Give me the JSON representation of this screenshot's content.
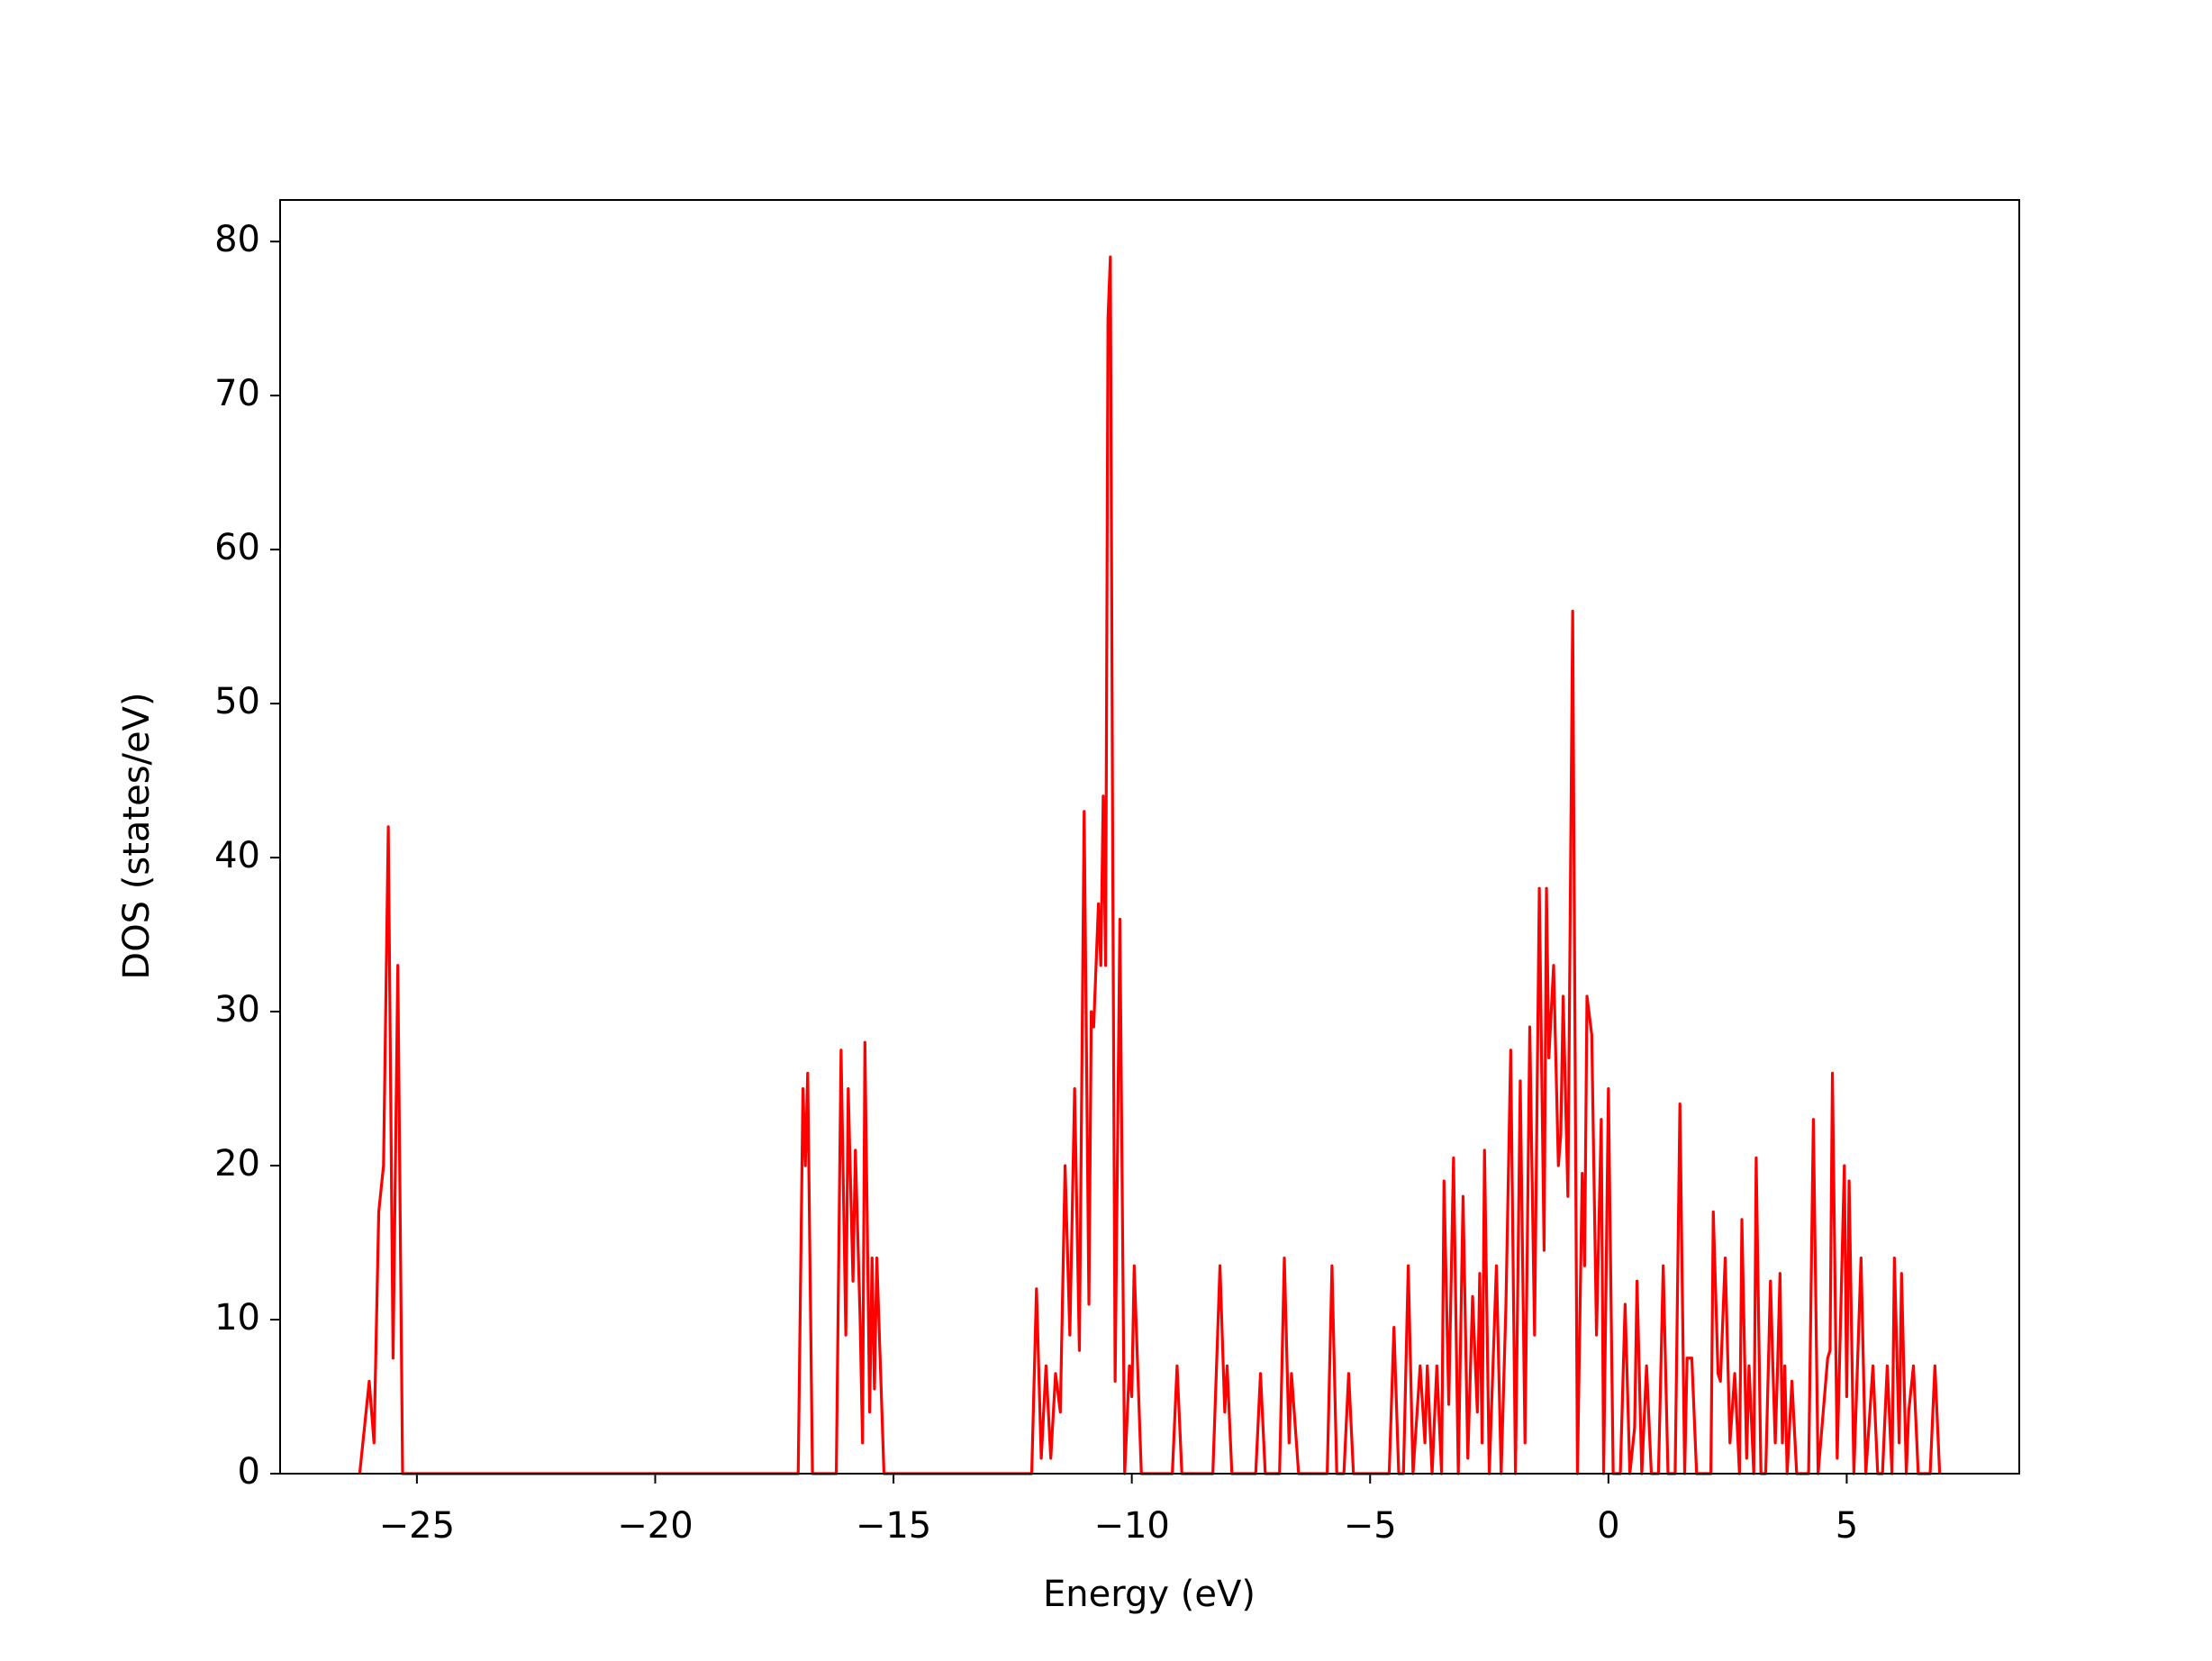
{
  "chart_data": {
    "type": "line",
    "xlabel": "Energy (eV)",
    "ylabel": "DOS (states/eV)",
    "color": "#ff0000",
    "xlim": [
      -27.87,
      8.62
    ],
    "ylim": [
      0,
      82.7
    ],
    "xticks": [
      {
        "value": -25,
        "label": "−25"
      },
      {
        "value": -20,
        "label": "−20"
      },
      {
        "value": -15,
        "label": "−15"
      },
      {
        "value": -10,
        "label": "−10"
      },
      {
        "value": -5,
        "label": "−5"
      },
      0,
      5
    ],
    "yticks": [
      0,
      10,
      20,
      30,
      40,
      50,
      60,
      70,
      80
    ],
    "grid": false,
    "x": [
      -26.2,
      -26.0,
      -25.9,
      -25.8,
      -25.7,
      -25.6,
      -25.5,
      -25.4,
      -25.3,
      -17.0,
      -16.9,
      -16.85,
      -16.8,
      -16.7,
      -16.2,
      -16.1,
      -16.0,
      -15.95,
      -15.85,
      -15.8,
      -15.7,
      -15.65,
      -15.6,
      -15.5,
      -15.45,
      -15.4,
      -15.35,
      -15.2,
      -12.1,
      -12.0,
      -11.9,
      -11.8,
      -11.7,
      -11.6,
      -11.5,
      -11.4,
      -11.3,
      -11.2,
      -11.1,
      -11.0,
      -10.9,
      -10.85,
      -10.8,
      -10.7,
      -10.65,
      -10.6,
      -10.55,
      -10.5,
      -10.45,
      -10.4,
      -10.35,
      -10.25,
      -10.15,
      -10.05,
      -10.0,
      -9.95,
      -9.8,
      -9.15,
      -9.05,
      -8.95,
      -8.3,
      -8.15,
      -8.05,
      -8.0,
      -7.9,
      -7.4,
      -7.3,
      -7.2,
      -6.9,
      -6.8,
      -6.7,
      -6.65,
      -6.5,
      -5.9,
      -5.8,
      -5.7,
      -5.55,
      -5.45,
      -5.35,
      -4.6,
      -4.5,
      -4.4,
      -4.3,
      -4.2,
      -4.1,
      -3.95,
      -3.85,
      -3.8,
      -3.7,
      -3.6,
      -3.5,
      -3.45,
      -3.35,
      -3.25,
      -3.15,
      -3.05,
      -2.95,
      -2.85,
      -2.75,
      -2.7,
      -2.65,
      -2.6,
      -2.5,
      -2.4,
      -2.35,
      -2.25,
      -2.15,
      -2.05,
      -1.95,
      -1.85,
      -1.75,
      -1.65,
      -1.55,
      -1.45,
      -1.35,
      -1.3,
      -1.25,
      -1.15,
      -1.05,
      -1.0,
      -0.95,
      -0.85,
      -0.75,
      -0.65,
      -0.55,
      -0.5,
      -0.45,
      -0.35,
      -0.25,
      -0.15,
      -0.1,
      0.0,
      0.1,
      0.25,
      0.35,
      0.45,
      0.55,
      0.6,
      0.7,
      0.8,
      0.9,
      1.05,
      1.15,
      1.25,
      1.4,
      1.5,
      1.6,
      1.65,
      1.75,
      1.85,
      2.15,
      2.2,
      2.3,
      2.35,
      2.45,
      2.55,
      2.65,
      2.75,
      2.8,
      2.9,
      2.95,
      3.05,
      3.1,
      3.2,
      3.3,
      3.4,
      3.45,
      3.5,
      3.55,
      3.6,
      3.65,
      3.7,
      3.75,
      3.85,
      3.95,
      4.2,
      4.3,
      4.4,
      4.6,
      4.65,
      4.7,
      4.8,
      4.95,
      5.0,
      5.05,
      5.15,
      5.3,
      5.4,
      5.55,
      5.65,
      5.75,
      5.85,
      5.95,
      6.0,
      6.1,
      6.15,
      6.25,
      6.3,
      6.4,
      6.5,
      6.75,
      6.85,
      6.95
    ],
    "values": [
      0,
      6,
      2,
      17,
      20,
      42,
      7.5,
      33,
      0,
      0,
      25,
      20,
      26,
      0,
      0,
      27.5,
      9,
      25,
      12.5,
      21,
      10,
      2,
      28,
      4,
      14,
      5.5,
      14,
      0,
      0,
      12,
      1,
      7,
      1,
      6.5,
      4,
      20,
      9,
      25,
      8,
      43,
      11,
      30,
      29,
      37,
      33,
      44,
      33,
      75,
      79,
      40,
      6,
      36,
      0,
      7,
      5,
      13.5,
      0,
      0,
      7,
      0,
      0,
      13.5,
      4,
      7,
      0,
      0,
      6.5,
      0,
      0,
      14,
      2,
      6.5,
      0,
      0,
      13.5,
      0,
      0,
      6.5,
      0,
      0,
      9.5,
      0,
      0,
      13.5,
      0,
      7,
      2,
      7,
      0,
      7,
      0,
      19,
      4.5,
      20.5,
      0,
      18,
      1,
      11.5,
      4,
      13,
      2,
      21,
      0,
      9,
      13.5,
      0,
      11,
      27.5,
      0,
      25.5,
      2,
      29,
      9,
      38,
      14.5,
      38,
      27,
      33,
      20,
      22,
      31,
      18,
      56,
      0,
      19.5,
      13.5,
      31,
      28.5,
      9,
      23,
      0,
      25,
      0,
      0,
      11,
      0,
      3,
      12.5,
      0,
      7,
      0,
      0,
      13.5,
      0,
      0,
      24,
      0,
      7.5,
      7.5,
      0,
      0,
      17,
      6.5,
      6,
      14,
      2,
      6.5,
      0,
      16.5,
      1,
      7,
      0,
      20.5,
      0,
      0,
      12.5,
      7,
      2,
      7,
      13,
      2,
      7,
      0,
      6,
      0,
      0,
      23,
      0,
      7.5,
      8,
      26,
      1,
      20,
      5,
      19,
      0,
      14,
      0,
      7,
      0,
      0,
      7,
      0,
      14,
      2,
      13,
      0,
      4,
      7,
      0,
      0,
      7,
      0
    ]
  }
}
